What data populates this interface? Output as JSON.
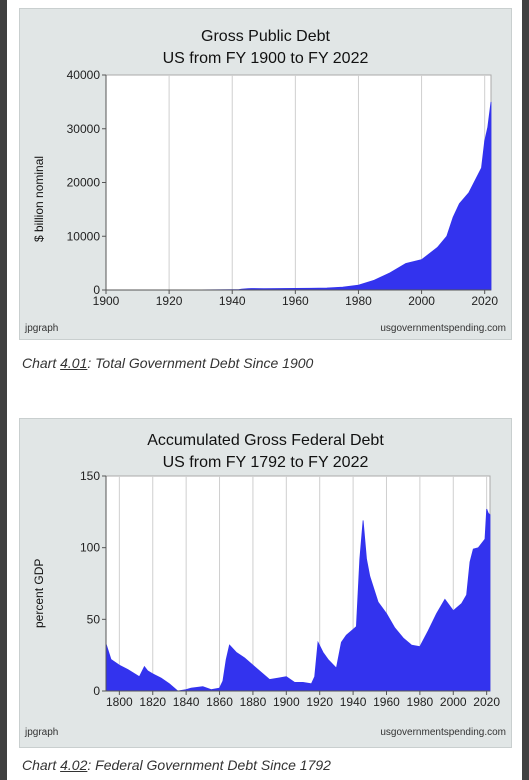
{
  "charts": [
    {
      "footer_left": "jpgraph",
      "footer_right": "usgovernmentspending.com",
      "caption": {
        "prefix": "Chart ",
        "number": "4.01",
        "text": ": Total Government Debt Since 1900"
      },
      "chart_data": {
        "type": "area",
        "title": "Gross Public Debt",
        "subtitle": "US from FY 1900 to FY 2022",
        "ylabel": "$ billion nominal",
        "xlim": [
          1900,
          2022
        ],
        "ylim": [
          0,
          40000
        ],
        "xticks": [
          1900,
          1920,
          1940,
          1960,
          1980,
          2000,
          2020
        ],
        "yticks": [
          0,
          10000,
          20000,
          30000,
          40000
        ],
        "grid": true,
        "color": "#3333ee",
        "x": [
          1900,
          1917,
          1919,
          1930,
          1940,
          1942,
          1943,
          1944,
          1945,
          1946,
          1950,
          1955,
          1960,
          1965,
          1970,
          1975,
          1980,
          1985,
          1990,
          1995,
          2000,
          2005,
          2008,
          2010,
          2012,
          2015,
          2019,
          2020,
          2021,
          2022
        ],
        "y": [
          1,
          5,
          27,
          16,
          51,
          79,
          143,
          204,
          260,
          271,
          257,
          274,
          290,
          322,
          381,
          542,
          908,
          1817,
          3206,
          4921,
          5629,
          7905,
          9986,
          13529,
          16051,
          18120,
          22719,
          27748,
          30316,
          35000
        ]
      }
    },
    {
      "footer_left": "jpgraph",
      "footer_right": "usgovernmentspending.com",
      "caption": {
        "prefix": "Chart ",
        "number": "4.02",
        "text": ": Federal Government Debt Since 1792"
      },
      "chart_data": {
        "type": "area",
        "title": "Accumulated Gross Federal Debt",
        "subtitle": "US from FY 1792 to FY 2022",
        "ylabel": "percent GDP",
        "xlim": [
          1792,
          2022
        ],
        "ylim": [
          0,
          150
        ],
        "xticks": [
          1800,
          1820,
          1840,
          1860,
          1880,
          1900,
          1920,
          1940,
          1960,
          1980,
          2000,
          2020
        ],
        "yticks": [
          0,
          50,
          100,
          150
        ],
        "grid": true,
        "color": "#3333ee",
        "x": [
          1792,
          1795,
          1800,
          1805,
          1812,
          1815,
          1817,
          1820,
          1825,
          1830,
          1835,
          1840,
          1843,
          1850,
          1855,
          1860,
          1862,
          1864,
          1866,
          1870,
          1875,
          1880,
          1885,
          1890,
          1895,
          1900,
          1905,
          1910,
          1915,
          1917,
          1919,
          1922,
          1925,
          1930,
          1933,
          1936,
          1940,
          1942,
          1944,
          1946,
          1948,
          1950,
          1955,
          1960,
          1965,
          1970,
          1975,
          1980,
          1985,
          1990,
          1995,
          2000,
          2005,
          2008,
          2010,
          2012,
          2015,
          2019,
          2020,
          2021,
          2022
        ],
        "y": [
          33,
          22,
          18,
          15,
          10,
          17,
          14,
          12,
          9,
          5,
          0,
          1,
          2,
          3,
          1,
          2,
          7,
          22,
          32,
          27,
          23,
          18,
          13,
          8,
          9,
          10,
          6,
          6,
          5,
          10,
          34,
          27,
          22,
          16,
          34,
          39,
          43,
          45,
          92,
          119,
          92,
          80,
          62,
          54,
          44,
          37,
          32,
          31,
          42,
          54,
          64,
          56,
          61,
          67,
          90,
          99,
          100,
          106,
          127,
          124,
          123
        ]
      }
    }
  ]
}
